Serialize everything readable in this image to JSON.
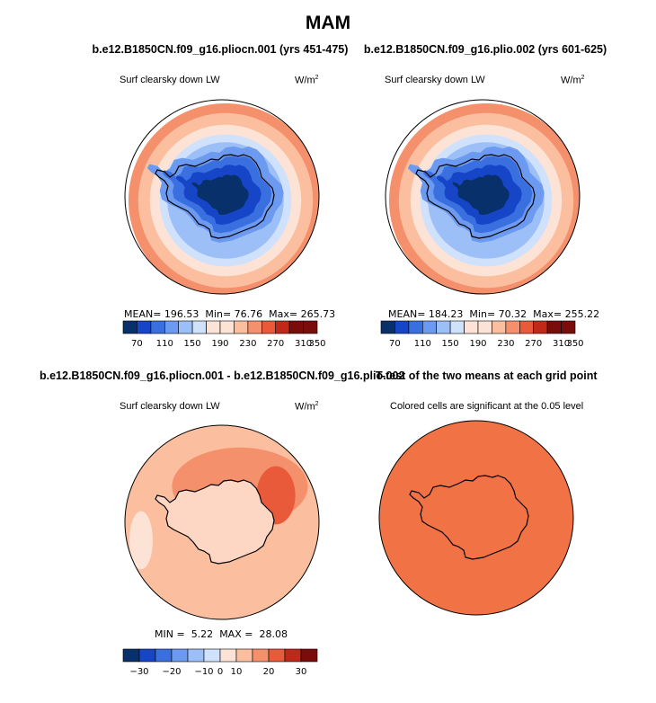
{
  "title": "MAM",
  "palette": [
    "#08306b",
    "#1646c7",
    "#3a6fe0",
    "#6b9af0",
    "#9dbff7",
    "#cfe1fb",
    "#fde3d6",
    "#fbbfa0",
    "#f5906c",
    "#e85a3a",
    "#c0281a",
    "#7a0d0c"
  ],
  "land_color_diff": "#fdd7c3",
  "ttest_fill": "#f07245",
  "panels": [
    {
      "title": "b.e12.B1850CN.f09_g16.pliocn.001 (yrs 451-475)",
      "variable": "Surf clearsky down LW",
      "units": "W/m",
      "units_sup": "2",
      "stats": {
        "mean_label": "MEAN=",
        "mean": "196.53",
        "min_label": "Min=",
        "min": "76.76",
        "max_label": "Max=",
        "max": "265.73"
      }
    },
    {
      "title": "b.e12.B1850CN.f09_g16.plio.002 (yrs 601-625)",
      "variable": "Surf clearsky down LW",
      "units": "W/m",
      "units_sup": "2",
      "stats": {
        "mean_label": "MEAN=",
        "mean": "184.23",
        "min_label": "Min=",
        "min": "70.32",
        "max_label": "Max=",
        "max": "255.22"
      }
    },
    {
      "title": "b.e12.B1850CN.f09_g16.pliocn.001 - b.e12.B1850CN.f09_g16.plio.002",
      "variable": "Surf clearsky down LW",
      "units": "W/m",
      "units_sup": "2",
      "stats": {
        "min_label": "MIN =",
        "min": "5.22",
        "max_label": "MAX =",
        "max": "28.08"
      }
    },
    {
      "title": "T-test of the two means at each grid point",
      "variable": "Colored cells are significant at the 0.05 level"
    }
  ],
  "chart_data": [
    {
      "type": "heatmap",
      "title": "b.e12.B1850CN.f09_g16.pliocn.001 (yrs 451-475)",
      "projection": "polar stereographic, south pole",
      "variable": "Surf clearsky down LW",
      "units": "W/m2",
      "colorbar_ticks": [
        "70",
        "110",
        "150",
        "190",
        "230",
        "270",
        "310",
        "350"
      ],
      "contour_levels": [
        70,
        90,
        110,
        130,
        150,
        170,
        190,
        210,
        230,
        250,
        270,
        290,
        310,
        330,
        350
      ],
      "mean": 196.53,
      "min": 76.76,
      "max": 265.73
    },
    {
      "type": "heatmap",
      "title": "b.e12.B1850CN.f09_g16.plio.002 (yrs 601-625)",
      "projection": "polar stereographic, south pole",
      "variable": "Surf clearsky down LW",
      "units": "W/m2",
      "colorbar_ticks": [
        "70",
        "110",
        "150",
        "190",
        "230",
        "270",
        "310",
        "350"
      ],
      "mean": 184.23,
      "min": 70.32,
      "max": 255.22
    },
    {
      "type": "heatmap",
      "title": "b.e12.B1850CN.f09_g16.pliocn.001 - b.e12.B1850CN.f09_g16.plio.002",
      "projection": "polar stereographic, south pole",
      "variable": "Surf clearsky down LW",
      "units": "W/m2",
      "colorbar_ticks": [
        "−30",
        "−20",
        "−10",
        "0",
        "10",
        "20",
        "30"
      ],
      "min": 5.22,
      "max": 28.08
    },
    {
      "type": "heatmap",
      "title": "T-test of the two means at each grid point",
      "projection": "polar stereographic, south pole",
      "note": "Colored cells are significant at the 0.05 level"
    }
  ]
}
